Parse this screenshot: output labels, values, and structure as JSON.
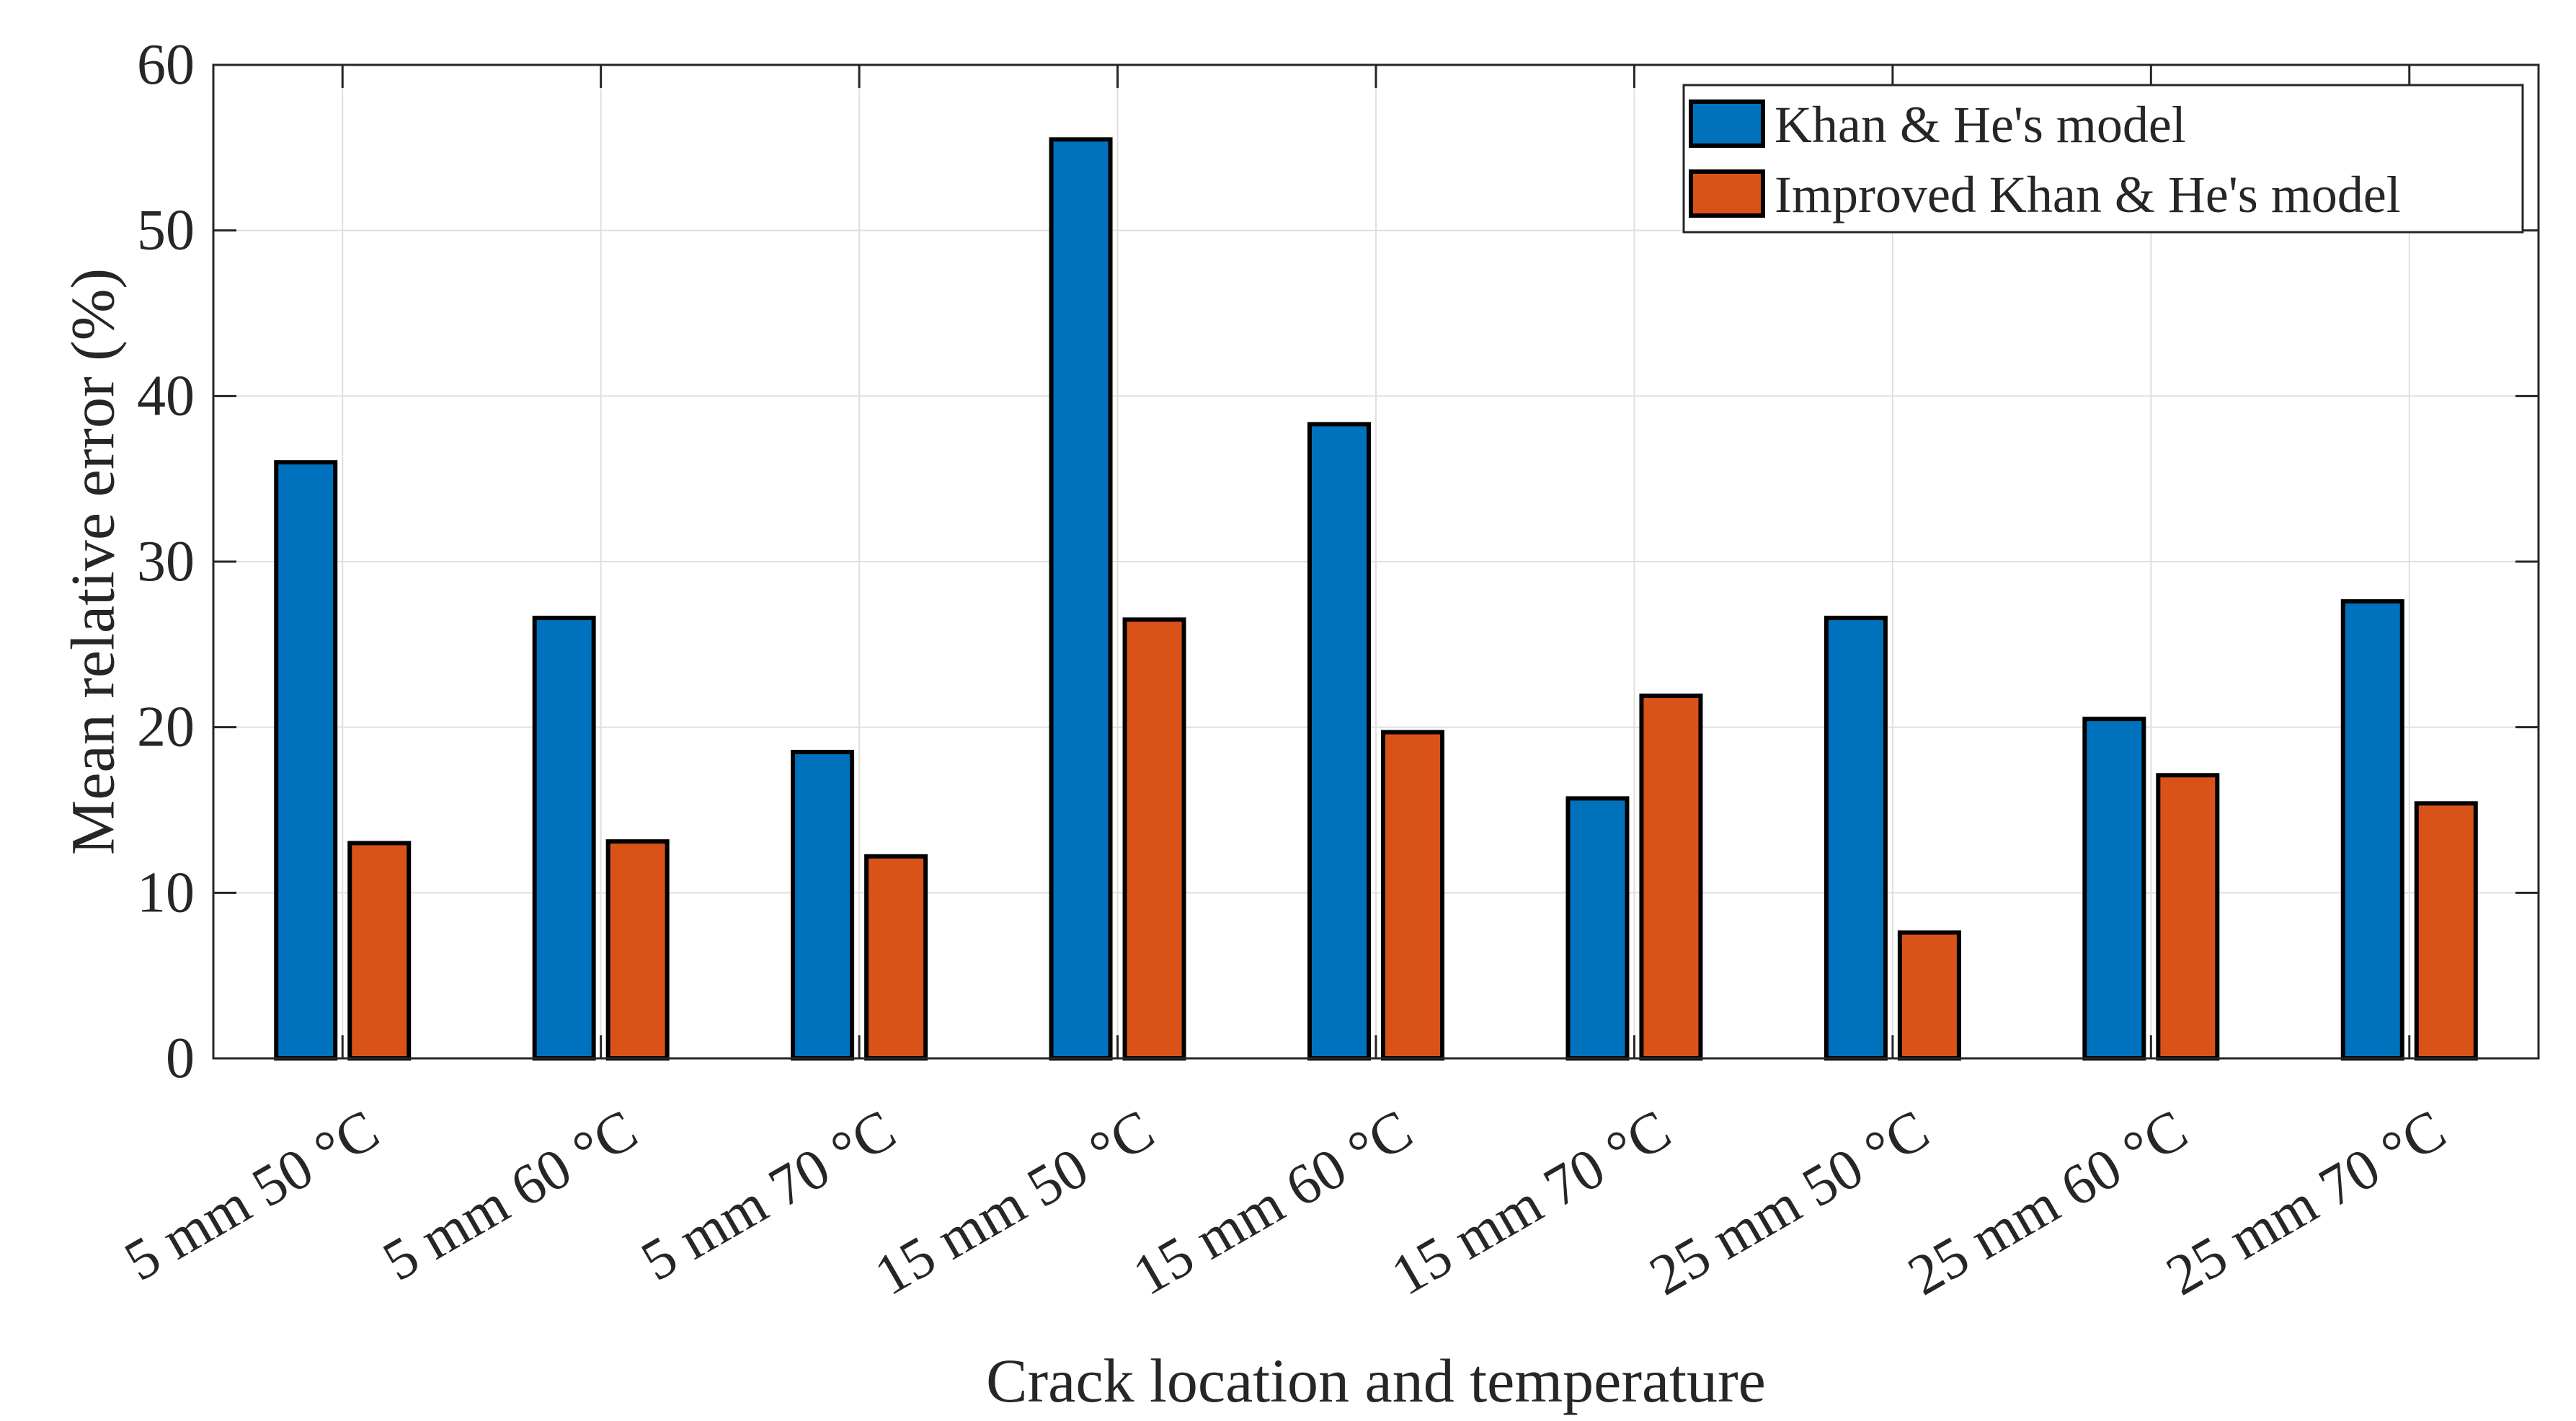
{
  "chart_data": {
    "type": "bar",
    "title": "",
    "xlabel": "Crack location and temperature",
    "ylabel": "Mean relative error (%)",
    "ylim": [
      0,
      60
    ],
    "yticks": [
      0,
      10,
      20,
      30,
      40,
      50,
      60
    ],
    "grid": true,
    "legend_position": "top-right",
    "categories": [
      "5 mm 50 °C",
      "5 mm 60 °C",
      "5 mm 70 °C",
      "15 mm 50 °C",
      "15 mm 60 °C",
      "15 mm 70 °C",
      "25 mm 50 °C",
      "25 mm 60 °C",
      "25 mm 70 °C"
    ],
    "series": [
      {
        "name": "Khan & He's model",
        "color": "#0072BD",
        "values": [
          36.0,
          26.6,
          18.5,
          55.5,
          38.3,
          15.7,
          26.6,
          20.5,
          27.6
        ]
      },
      {
        "name": "Improved Khan & He's model",
        "color": "#D95319",
        "values": [
          13.0,
          13.1,
          12.2,
          26.5,
          19.7,
          21.9,
          7.6,
          17.1,
          15.4
        ]
      }
    ]
  }
}
